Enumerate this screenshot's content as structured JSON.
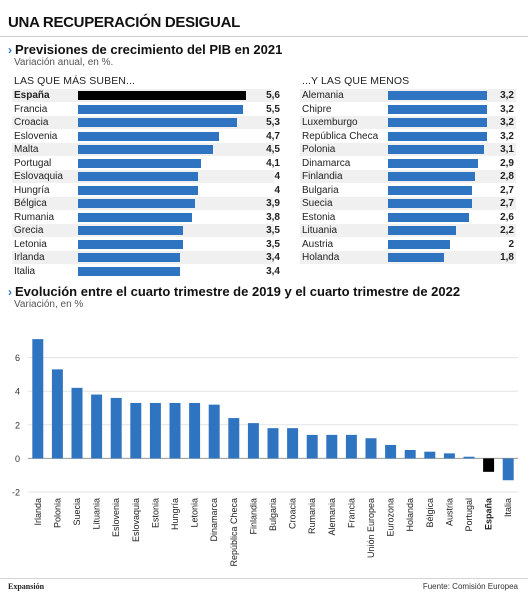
{
  "title": "UNA RECUPERACIÓN DESIGUAL",
  "section1": {
    "chevron": "›",
    "title": "Previsiones de crecimiento del PIB en 2021",
    "subtitle": "Variación anual, en %."
  },
  "section2": {
    "chevron": "›",
    "title": "Evolución entre el cuarto trimestre de 2019 y el cuarto trimestre de 2022",
    "subtitle": "Variación, en %"
  },
  "footer": {
    "brand": "Expansión",
    "source": "Fuente: Comisión Europea"
  },
  "chart_data": [
    {
      "type": "bar",
      "orientation": "horizontal",
      "title": "LAS QUE MÁS SUBEN...",
      "categories": [
        "España",
        "Francia",
        "Croacia",
        "Eslovenia",
        "Malta",
        "Portugal",
        "Eslovaquia",
        "Hungría",
        "Bélgica",
        "Rumania",
        "Grecia",
        "Letonia",
        "Irlanda",
        "Italia"
      ],
      "values": [
        5.6,
        5.5,
        5.3,
        4.7,
        4.5,
        4.1,
        4,
        4,
        3.9,
        3.8,
        3.5,
        3.5,
        3.4,
        3.4
      ],
      "labels": [
        "5,6",
        "5,5",
        "5,3",
        "4,7",
        "4,5",
        "4,1",
        "4",
        "4",
        "3,9",
        "3,8",
        "3,5",
        "3,5",
        "3,4",
        "3,4"
      ],
      "highlight": "España",
      "colors": {
        "bar": "#2f74c0",
        "highlight": "#000000"
      }
    },
    {
      "type": "bar",
      "orientation": "horizontal",
      "title": "...Y LAS QUE MENOS",
      "categories": [
        "Alemania",
        "Chipre",
        "Luxemburgo",
        "República Checa",
        "Polonia",
        "Dinamarca",
        "Finlandia",
        "Bulgaria",
        "Suecia",
        "Estonia",
        "Lituania",
        "Austria",
        "Holanda"
      ],
      "values": [
        3.2,
        3.2,
        3.2,
        3.2,
        3.1,
        2.9,
        2.8,
        2.7,
        2.7,
        2.6,
        2.2,
        2,
        1.8
      ],
      "labels": [
        "3,2",
        "3,2",
        "3,2",
        "3,2",
        "3,1",
        "2,9",
        "2,8",
        "2,7",
        "2,7",
        "2,6",
        "2,2",
        "2",
        "1,8"
      ],
      "colors": {
        "bar": "#2f74c0"
      }
    },
    {
      "type": "bar",
      "orientation": "vertical",
      "title": "Evolución entre el cuarto trimestre de 2019 y el cuarto trimestre de 2022",
      "categories": [
        "Irlanda",
        "Polonia",
        "Suecia",
        "Lituania",
        "Eslovenia",
        "Eslovaquia",
        "Estonia",
        "Hungría",
        "Letonia",
        "Dinamarca",
        "República Checa",
        "Finlandia",
        "Bulgaria",
        "Croacia",
        "Rumania",
        "Alemania",
        "Francia",
        "Unión Europea",
        "Eurozona",
        "Holanda",
        "Bélgica",
        "Austria",
        "Portugal",
        "España",
        "Italia"
      ],
      "values": [
        7.1,
        5.3,
        4.2,
        3.8,
        3.6,
        3.3,
        3.3,
        3.3,
        3.3,
        3.2,
        2.4,
        2.1,
        1.8,
        1.8,
        1.4,
        1.4,
        1.4,
        1.2,
        0.8,
        0.5,
        0.4,
        0.3,
        0.1,
        -0.8,
        -1.3
      ],
      "highlight": "España",
      "ylim": [
        -2,
        8
      ],
      "yticks": [
        -2,
        0,
        2,
        4,
        6
      ],
      "grid": true,
      "colors": {
        "bar": "#2f74c0",
        "highlight": "#000000",
        "grid": "#e3e3e3"
      }
    }
  ]
}
